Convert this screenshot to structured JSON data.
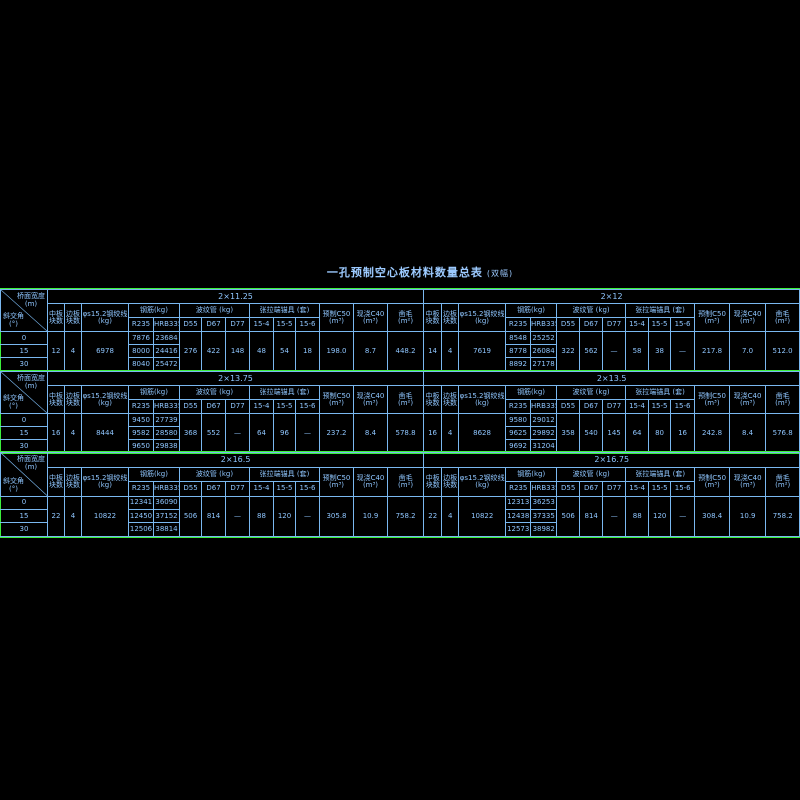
{
  "title": "一孔预制空心板材料数量总表",
  "subtitle": "(双幅)",
  "headers": {
    "width_label": "桥面宽度",
    "width_unit": "(m)",
    "angle_label": "斜交角",
    "angle_unit": "(°)",
    "mid": "中板块数",
    "edge": "边板块数",
    "strand": "φs15.2钢绞线",
    "strand_unit": "(kg)",
    "rebar": "钢筋(kg)",
    "r235": "R235",
    "hrb": "HRB335",
    "duct": "波纹管 (kg)",
    "d55": "D55",
    "d67": "D67",
    "d77": "D77",
    "anchor": "张拉端锚具 (套)",
    "a4": "15-4",
    "a5": "15-5",
    "a6": "15-6",
    "precast": "预制C50",
    "precast_unit": "(m³)",
    "castin": "现浇C40",
    "castin_unit": "(m³)",
    "rough": "凿毛",
    "rough_unit": "(m²)"
  },
  "angles": [
    "0",
    "15",
    "30"
  ],
  "colors": {
    "grid": "#7ab8f0",
    "section_border": "#3cf03c",
    "text": "#8fc6ff",
    "background": "#000000"
  },
  "sections": [
    {
      "left": {
        "span": "2×11.25",
        "mid": "12",
        "edge": "4",
        "strand": "6978",
        "r235": [
          "7876",
          "8000",
          "8040"
        ],
        "hrb": [
          "23684",
          "24416",
          "25472"
        ],
        "d55": "276",
        "d67": "422",
        "d77": "148",
        "a4": "48",
        "a5": "54",
        "a6": "18",
        "precast": "198.0",
        "castin": "8.7",
        "rough": "448.2"
      },
      "right": {
        "span": "2×12",
        "mid": "14",
        "edge": "4",
        "strand": "7619",
        "r235": [
          "8548",
          "8778",
          "8892"
        ],
        "hrb": [
          "25252",
          "26084",
          "27178"
        ],
        "d55": "322",
        "d67": "562",
        "d77": "—",
        "a4": "58",
        "a5": "38",
        "a6": "—",
        "precast": "217.8",
        "castin": "7.0",
        "rough": "512.0"
      }
    },
    {
      "left": {
        "span": "2×13.75",
        "mid": "16",
        "edge": "4",
        "strand": "8444",
        "r235": [
          "9450",
          "9582",
          "9650"
        ],
        "hrb": [
          "27739",
          "28580",
          "29838"
        ],
        "d55": "368",
        "d67": "552",
        "d77": "—",
        "a4": "64",
        "a5": "96",
        "a6": "—",
        "precast": "237.2",
        "castin": "8.4",
        "rough": "578.8"
      },
      "right": {
        "span": "2×13.5",
        "mid": "16",
        "edge": "4",
        "strand": "8628",
        "r235": [
          "9580",
          "9625",
          "9692"
        ],
        "hrb": [
          "29012",
          "29892",
          "31204"
        ],
        "d55": "358",
        "d67": "540",
        "d77": "145",
        "a4": "64",
        "a5": "80",
        "a6": "16",
        "precast": "242.8",
        "castin": "8.4",
        "rough": "576.8"
      }
    },
    {
      "left": {
        "span": "2×16.5",
        "mid": "22",
        "edge": "4",
        "strand": "10822",
        "r235": [
          "12341",
          "12450",
          "12506"
        ],
        "hrb": [
          "36090",
          "37152",
          "38814"
        ],
        "d55": "506",
        "d67": "814",
        "d77": "—",
        "a4": "88",
        "a5": "120",
        "a6": "—",
        "precast": "305.8",
        "castin": "10.9",
        "rough": "758.2"
      },
      "right": {
        "span": "2×16.75",
        "mid": "22",
        "edge": "4",
        "strand": "10822",
        "r235": [
          "12313",
          "12438",
          "12573"
        ],
        "hrb": [
          "36253",
          "37335",
          "38982"
        ],
        "d55": "506",
        "d67": "814",
        "d77": "—",
        "a4": "88",
        "a5": "120",
        "a6": "—",
        "precast": "308.4",
        "castin": "10.9",
        "rough": "758.2"
      }
    }
  ]
}
